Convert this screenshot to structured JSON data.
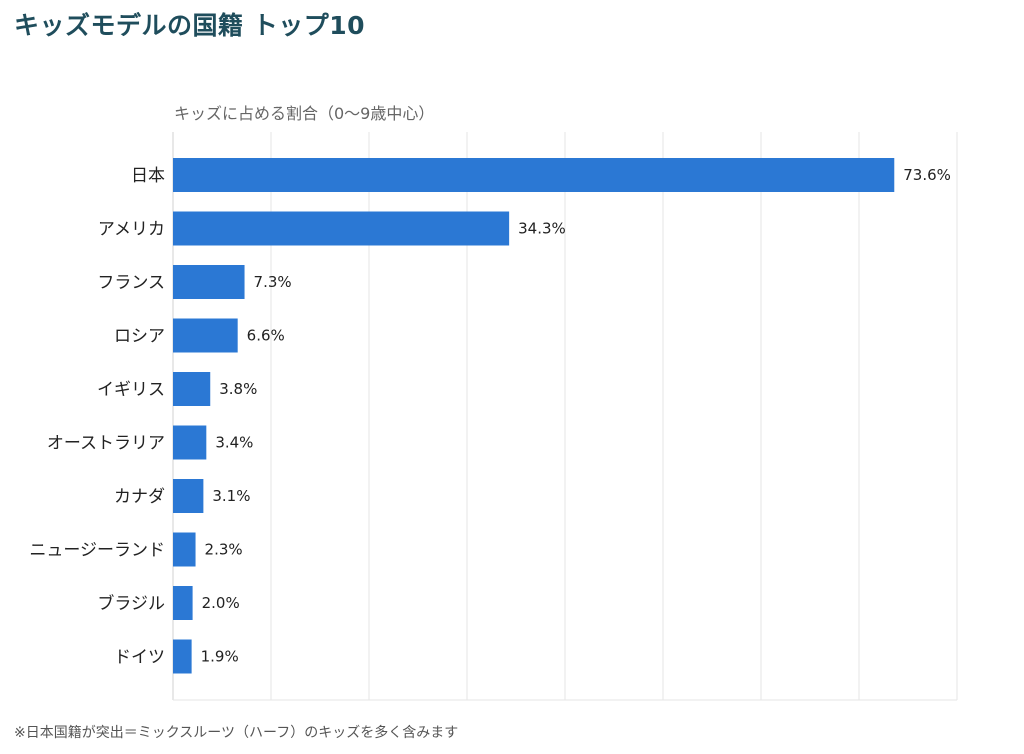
{
  "chart_data": {
    "type": "bar",
    "orientation": "horizontal",
    "title": "キッズモデルの国籍 トップ10",
    "subtitle": "キッズに占める割合（0〜9歳中心）",
    "categories": [
      "日本",
      "アメリカ",
      "フランス",
      "ロシア",
      "イギリス",
      "オーストラリア",
      "カナダ",
      "ニュージーランド",
      "ブラジル",
      "ドイツ"
    ],
    "values": [
      73.6,
      34.3,
      7.3,
      6.6,
      3.8,
      3.4,
      3.1,
      2.3,
      2.0,
      1.9
    ],
    "value_labels": [
      "73.6%",
      "34.3%",
      "7.3%",
      "6.6%",
      "3.8%",
      "3.4%",
      "3.1%",
      "2.3%",
      "2.0%",
      "1.9%"
    ],
    "xlim": [
      0,
      80
    ],
    "grid": true,
    "bar_color": "#2b78d4",
    "grid_color": "#e6e6e6",
    "title_color": "#1f4d5c"
  },
  "footnote": "※日本国籍が突出＝ミックスルーツ（ハーフ）のキッズを多く含みます"
}
